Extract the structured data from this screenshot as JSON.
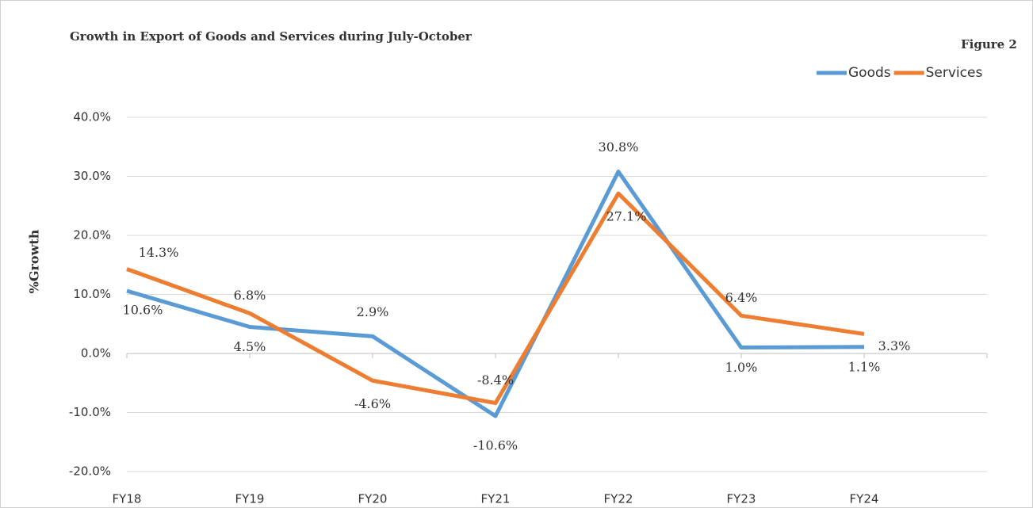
{
  "chart_data": {
    "type": "line",
    "title": "Growth in Export of Goods and Services during July-October",
    "annotation": "Figure 2",
    "y_label": "%Growth",
    "categories": [
      "FY18",
      "FY19",
      "FY20",
      "FY21",
      "FY22",
      "FY23",
      "FY24",
      null
    ],
    "series": [
      {
        "name": "Goods",
        "color": "#5b9bd5",
        "values": [
          10.6,
          4.5,
          2.9,
          -10.6,
          30.8,
          1.0,
          1.1,
          null
        ],
        "value_labels": [
          "10.6%",
          "4.5%",
          "2.9%",
          "-10.6%",
          "30.8%",
          "1.0%",
          "1.1%",
          null
        ]
      },
      {
        "name": "Services",
        "color": "#ed7d31",
        "values": [
          14.3,
          6.8,
          -4.6,
          -8.4,
          27.1,
          6.4,
          3.3,
          null
        ],
        "value_labels": [
          "14.3%",
          "6.8%",
          "-4.6%",
          "-8.4%",
          "27.1%",
          "6.4%",
          "3.3%",
          null
        ]
      }
    ],
    "ylim": [
      -20,
      40
    ],
    "yticks": [
      {
        "value": -20,
        "label": "-20.0%"
      },
      {
        "value": -10,
        "label": "-10.0%"
      },
      {
        "value": 0,
        "label": "0.0%"
      },
      {
        "value": 10,
        "label": "10.0%"
      },
      {
        "value": 20,
        "label": "20.0%"
      },
      {
        "value": 30,
        "label": "30.0%"
      },
      {
        "value": 40,
        "label": "40.0%"
      }
    ],
    "grid": true,
    "legend": "top-right"
  }
}
